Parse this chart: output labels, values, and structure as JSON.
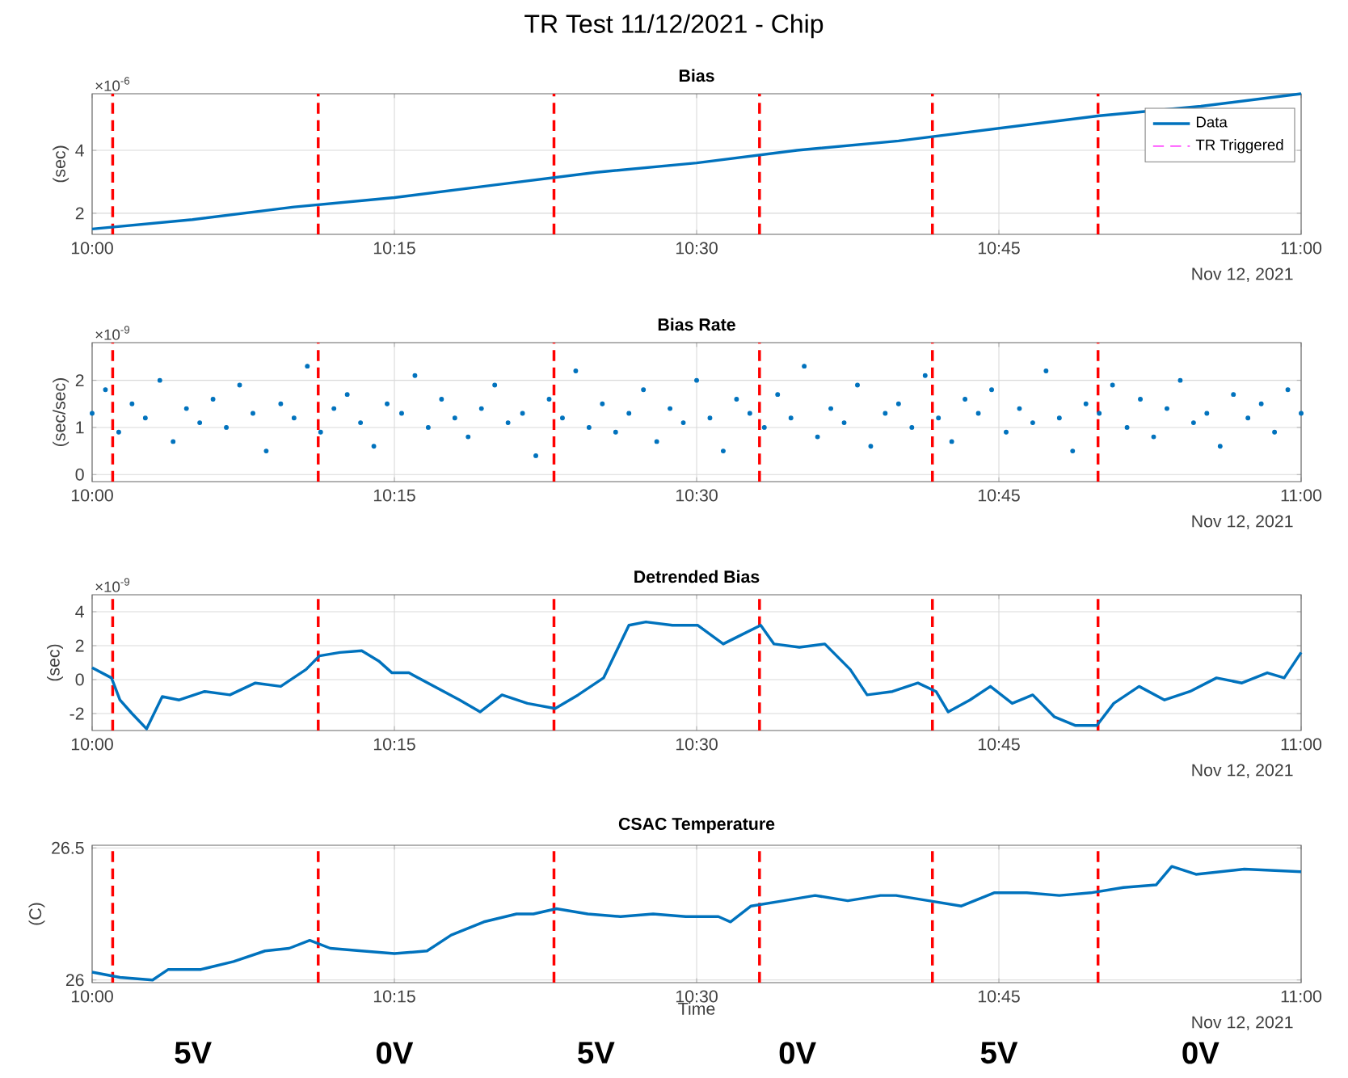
{
  "chart_data": [
    {
      "type": "line",
      "title": "TR Test 11/12/2021 - Chip",
      "subtitle": "Bias",
      "ylabel": "(sec)",
      "grid": true,
      "legend": "top right",
      "xlim": [
        10,
        11
      ],
      "xticks": [
        {
          "value": 10,
          "label": "10:00"
        },
        {
          "value": 10.25,
          "label": "10:15"
        },
        {
          "value": 10.5,
          "label": "10:30"
        },
        {
          "value": 10.75,
          "label": "10:45"
        },
        {
          "value": 11,
          "label": "11:00"
        }
      ],
      "ylim": [
        1.33,
        5.8
      ],
      "yticks": [
        2,
        4
      ],
      "annotations": [
        "×10$^{-6}$",
        "Nov 12, 2021"
      ],
      "ref_lines": [
        {
          "axis": "x",
          "value": 10.017,
          "color": "#ff0000",
          "line_style": "dashed"
        },
        {
          "axis": "x",
          "value": 10.187,
          "color": "#ff0000",
          "line_style": "dashed"
        },
        {
          "axis": "x",
          "value": 10.382,
          "color": "#ff0000",
          "line_style": "dashed"
        },
        {
          "axis": "x",
          "value": 10.552,
          "color": "#ff0000",
          "line_style": "dashed"
        },
        {
          "axis": "x",
          "value": 10.695,
          "color": "#ff0000",
          "line_style": "dashed"
        },
        {
          "axis": "x",
          "value": 10.832,
          "color": "#ff0000",
          "line_style": "dashed"
        }
      ],
      "series": [
        {
          "name": "Data",
          "color": "#0072bd",
          "x": [
            10,
            10.083,
            10.167,
            10.25,
            10.333,
            10.417,
            10.5,
            10.583,
            10.667,
            10.75,
            10.833,
            10.917,
            11
          ],
          "values": [
            1.5,
            1.8,
            2.2,
            2.5,
            2.9,
            3.3,
            3.6,
            4.0,
            4.3,
            4.7,
            5.1,
            5.4,
            5.8
          ]
        },
        {
          "name": "TR Triggered",
          "color": "#ff00ff",
          "line_style": "dashed"
        }
      ]
    },
    {
      "type": "scatter",
      "title": "Bias Rate",
      "ylabel": "(sec/sec)",
      "grid": true,
      "xlim": [
        10,
        11
      ],
      "xticks": [
        {
          "value": 10,
          "label": "10:00"
        },
        {
          "value": 10.25,
          "label": "10:15"
        },
        {
          "value": 10.5,
          "label": "10:30"
        },
        {
          "value": 10.75,
          "label": "10:45"
        },
        {
          "value": 11,
          "label": "11:00"
        }
      ],
      "ylim": [
        -0.15,
        2.8
      ],
      "yticks": [
        0,
        1,
        2
      ],
      "annotations": [
        "×10$^{-9}$",
        "Nov 12, 2021"
      ],
      "ref_lines": [
        {
          "axis": "x",
          "value": 10.017,
          "color": "#ff0000",
          "line_style": "dashed"
        },
        {
          "axis": "x",
          "value": 10.187,
          "color": "#ff0000",
          "line_style": "dashed"
        },
        {
          "axis": "x",
          "value": 10.382,
          "color": "#ff0000",
          "line_style": "dashed"
        },
        {
          "axis": "x",
          "value": 10.552,
          "color": "#ff0000",
          "line_style": "dashed"
        },
        {
          "axis": "x",
          "value": 10.695,
          "color": "#ff0000",
          "line_style": "dashed"
        },
        {
          "axis": "x",
          "value": 10.832,
          "color": "#ff0000",
          "line_style": "dashed"
        }
      ],
      "series": [
        {
          "color": "#0072bd",
          "x": [
            10,
            10.011,
            10.022,
            10.033,
            10.044,
            10.056,
            10.067,
            10.078,
            10.089,
            10.1,
            10.111,
            10.122,
            10.133,
            10.144,
            10.156,
            10.167,
            10.178,
            10.189,
            10.2,
            10.211,
            10.222,
            10.233,
            10.244,
            10.256,
            10.267,
            10.278,
            10.289,
            10.3,
            10.311,
            10.322,
            10.333,
            10.344,
            10.356,
            10.367,
            10.378,
            10.389,
            10.4,
            10.411,
            10.422,
            10.433,
            10.444,
            10.456,
            10.467,
            10.478,
            10.489,
            10.5,
            10.511,
            10.522,
            10.533,
            10.544,
            10.556,
            10.567,
            10.578,
            10.589,
            10.6,
            10.611,
            10.622,
            10.633,
            10.644,
            10.656,
            10.667,
            10.678,
            10.689,
            10.7,
            10.711,
            10.722,
            10.733,
            10.744,
            10.756,
            10.767,
            10.778,
            10.789,
            10.8,
            10.811,
            10.822,
            10.833,
            10.844,
            10.856,
            10.867,
            10.878,
            10.889,
            10.9,
            10.911,
            10.922,
            10.933,
            10.944,
            10.956,
            10.967,
            10.978,
            10.989,
            11
          ],
          "values": [
            1.3,
            1.8,
            0.9,
            1.5,
            1.2,
            2.0,
            0.7,
            1.4,
            1.1,
            1.6,
            1.0,
            1.9,
            1.3,
            0.5,
            1.5,
            1.2,
            2.3,
            0.9,
            1.4,
            1.7,
            1.1,
            0.6,
            1.5,
            1.3,
            2.1,
            1.0,
            1.6,
            1.2,
            0.8,
            1.4,
            1.9,
            1.1,
            1.3,
            0.4,
            1.6,
            1.2,
            2.2,
            1.0,
            1.5,
            0.9,
            1.3,
            1.8,
            0.7,
            1.4,
            1.1,
            2.0,
            1.2,
            0.5,
            1.6,
            1.3,
            1.0,
            1.7,
            1.2,
            2.3,
            0.8,
            1.4,
            1.1,
            1.9,
            0.6,
            1.3,
            1.5,
            1.0,
            2.1,
            1.2,
            0.7,
            1.6,
            1.3,
            1.8,
            0.9,
            1.4,
            1.1,
            2.2,
            1.2,
            0.5,
            1.5,
            1.3,
            1.9,
            1.0,
            1.6,
            0.8,
            1.4,
            2.0,
            1.1,
            1.3,
            0.6,
            1.7,
            1.2,
            1.5,
            0.9,
            1.8,
            1.3
          ]
        }
      ]
    },
    {
      "type": "line",
      "title": "Detrended Bias",
      "ylabel": "(sec)",
      "grid": true,
      "xlim": [
        10,
        11
      ],
      "xticks": [
        {
          "value": 10,
          "label": "10:00"
        },
        {
          "value": 10.25,
          "label": "10:15"
        },
        {
          "value": 10.5,
          "label": "10:30"
        },
        {
          "value": 10.75,
          "label": "10:45"
        },
        {
          "value": 11,
          "label": "11:00"
        }
      ],
      "ylim": [
        -3,
        5
      ],
      "yticks": [
        -2,
        0,
        2,
        4
      ],
      "annotations": [
        "×10$^{-9}$",
        "Nov 12, 2021"
      ],
      "ref_lines": [
        {
          "axis": "x",
          "value": 10.017,
          "color": "#ff0000",
          "line_style": "dashed"
        },
        {
          "axis": "x",
          "value": 10.187,
          "color": "#ff0000",
          "line_style": "dashed"
        },
        {
          "axis": "x",
          "value": 10.382,
          "color": "#ff0000",
          "line_style": "dashed"
        },
        {
          "axis": "x",
          "value": 10.552,
          "color": "#ff0000",
          "line_style": "dashed"
        },
        {
          "axis": "x",
          "value": 10.695,
          "color": "#ff0000",
          "line_style": "dashed"
        },
        {
          "axis": "x",
          "value": 10.832,
          "color": "#ff0000",
          "line_style": "dashed"
        }
      ],
      "series": [
        {
          "color": "#0072bd",
          "x": [
            10,
            10.016,
            10.023,
            10.033,
            10.045,
            10.058,
            10.072,
            10.093,
            10.114,
            10.135,
            10.156,
            10.177,
            10.188,
            10.205,
            10.223,
            10.237,
            10.248,
            10.262,
            10.283,
            10.304,
            10.321,
            10.339,
            10.36,
            10.383,
            10.402,
            10.423,
            10.444,
            10.458,
            10.48,
            10.501,
            10.522,
            10.536,
            10.553,
            10.564,
            10.585,
            10.606,
            10.627,
            10.641,
            10.662,
            10.683,
            10.698,
            10.708,
            10.726,
            10.743,
            10.761,
            10.778,
            10.796,
            10.813,
            10.831,
            10.845,
            10.866,
            10.887,
            10.908,
            10.93,
            10.951,
            10.972,
            10.986,
            11
          ],
          "values": [
            0.7,
            0.1,
            -1.2,
            -2.0,
            -2.9,
            -1.0,
            -1.2,
            -0.7,
            -0.9,
            -0.2,
            -0.4,
            0.6,
            1.4,
            1.6,
            1.7,
            1.1,
            0.4,
            0.4,
            -0.4,
            -1.2,
            -1.9,
            -0.9,
            -1.4,
            -1.7,
            -0.9,
            0.1,
            3.2,
            3.4,
            3.2,
            3.2,
            2.1,
            2.6,
            3.2,
            2.1,
            1.9,
            2.1,
            0.6,
            -0.9,
            -0.7,
            -0.2,
            -0.7,
            -1.9,
            -1.2,
            -0.4,
            -1.4,
            -0.9,
            -2.2,
            -2.7,
            -2.7,
            -1.4,
            -0.4,
            -1.2,
            -0.7,
            0.1,
            -0.2,
            0.4,
            0.1,
            1.6
          ]
        }
      ]
    },
    {
      "type": "line",
      "title": "CSAC Temperature",
      "ylabel": "(C)",
      "xlabel": "Time",
      "grid": true,
      "xlim": [
        10,
        11
      ],
      "xticks": [
        {
          "value": 10,
          "label": "10:00"
        },
        {
          "value": 10.25,
          "label": "10:15"
        },
        {
          "value": 10.5,
          "label": "10:30"
        },
        {
          "value": 10.75,
          "label": "10:45"
        },
        {
          "value": 11,
          "label": "11:00"
        }
      ],
      "ylim": [
        25.99,
        26.51
      ],
      "yticks": [
        26,
        26.5
      ],
      "annotations": [
        "5V",
        "0V",
        "5V",
        "0V",
        "5V",
        "0V",
        "Nov 12, 2021"
      ],
      "ref_lines": [
        {
          "axis": "x",
          "value": 10.017,
          "color": "#ff0000",
          "line_style": "dashed"
        },
        {
          "axis": "x",
          "value": 10.187,
          "color": "#ff0000",
          "line_style": "dashed"
        },
        {
          "axis": "x",
          "value": 10.382,
          "color": "#ff0000",
          "line_style": "dashed"
        },
        {
          "axis": "x",
          "value": 10.552,
          "color": "#ff0000",
          "line_style": "dashed"
        },
        {
          "axis": "x",
          "value": 10.695,
          "color": "#ff0000",
          "line_style": "dashed"
        },
        {
          "axis": "x",
          "value": 10.832,
          "color": "#ff0000",
          "line_style": "dashed"
        }
      ],
      "series": [
        {
          "color": "#0072bd",
          "x": [
            10,
            10.023,
            10.05,
            10.063,
            10.09,
            10.117,
            10.143,
            10.163,
            10.18,
            10.197,
            10.223,
            10.25,
            10.277,
            10.297,
            10.324,
            10.351,
            10.365,
            10.384,
            10.41,
            10.437,
            10.464,
            10.491,
            10.518,
            10.528,
            10.545,
            10.572,
            10.598,
            10.625,
            10.652,
            10.665,
            10.692,
            10.719,
            10.746,
            10.773,
            10.8,
            10.826,
            10.853,
            10.88,
            10.893,
            10.913,
            10.933,
            10.953,
            11
          ],
          "values": [
            26.03,
            26.01,
            26.0,
            26.04,
            26.04,
            26.07,
            26.11,
            26.12,
            26.15,
            26.12,
            26.11,
            26.1,
            26.11,
            26.17,
            26.22,
            26.25,
            26.25,
            26.27,
            26.25,
            26.24,
            26.25,
            26.24,
            26.24,
            26.22,
            26.28,
            26.3,
            26.32,
            26.3,
            26.32,
            26.32,
            26.3,
            26.28,
            26.33,
            26.33,
            26.32,
            26.33,
            26.35,
            26.36,
            26.43,
            26.4,
            26.41,
            26.42,
            26.41
          ]
        }
      ]
    }
  ]
}
